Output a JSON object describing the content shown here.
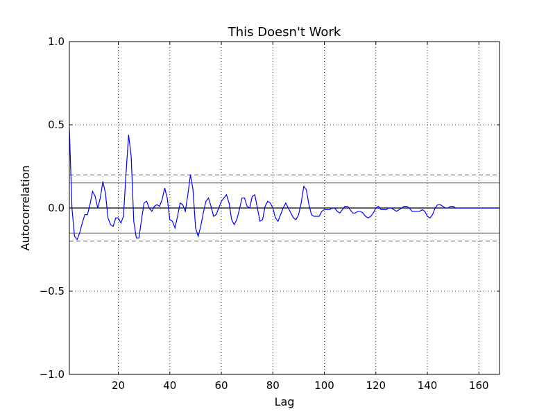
{
  "chart_data": {
    "type": "line",
    "title": "This Doesn't Work",
    "xlabel": "Lag",
    "ylabel": "Autocorrelation",
    "xlim": [
      1,
      168
    ],
    "ylim": [
      -1.0,
      1.0
    ],
    "x_ticks": [
      20,
      40,
      60,
      80,
      100,
      120,
      140,
      160
    ],
    "x_tick_labels": [
      "20",
      "40",
      "60",
      "80",
      "100",
      "120",
      "140",
      "160"
    ],
    "y_ticks": [
      -1.0,
      -0.5,
      0.0,
      0.5,
      1.0
    ],
    "y_tick_labels": [
      "−1.0",
      "−0.5",
      "0.0",
      "0.5",
      "1.0"
    ],
    "grid": true,
    "confidence_bands": {
      "solid": [
        0.151,
        -0.151
      ],
      "dashed": [
        0.199,
        -0.199
      ]
    },
    "colors": {
      "series": "#0000ff",
      "band_solid": "#808080",
      "band_dashed": "#808080",
      "zero_line": "#000000"
    },
    "series": [
      {
        "values": [
          0.48,
          0.0,
          -0.17,
          -0.19,
          -0.15,
          -0.09,
          -0.04,
          -0.04,
          0.02,
          0.1,
          0.07,
          0.0,
          0.06,
          0.16,
          0.09,
          -0.06,
          -0.1,
          -0.11,
          -0.06,
          -0.06,
          -0.09,
          -0.05,
          0.21,
          0.44,
          0.31,
          -0.08,
          -0.18,
          -0.18,
          -0.07,
          0.03,
          0.04,
          0.0,
          -0.02,
          0.01,
          0.02,
          0.01,
          0.05,
          0.12,
          0.06,
          -0.07,
          -0.08,
          -0.12,
          -0.05,
          0.03,
          0.02,
          -0.02,
          0.08,
          0.2,
          0.11,
          -0.12,
          -0.17,
          -0.11,
          -0.03,
          0.04,
          0.06,
          0.01,
          -0.05,
          -0.04,
          0.0,
          0.04,
          0.06,
          0.08,
          0.03,
          -0.07,
          -0.1,
          -0.07,
          -0.01,
          0.06,
          0.06,
          0.01,
          0.0,
          0.07,
          0.08,
          0.0,
          -0.08,
          -0.07,
          0.01,
          0.04,
          0.03,
          0.0,
          -0.06,
          -0.08,
          -0.04,
          0.0,
          0.03,
          0.0,
          -0.03,
          -0.06,
          -0.07,
          -0.04,
          0.03,
          0.13,
          0.11,
          0.02,
          -0.04,
          -0.05,
          -0.05,
          -0.05,
          -0.02,
          -0.01,
          -0.01,
          -0.01,
          0.0,
          0.0,
          -0.02,
          -0.03,
          -0.01,
          0.01,
          0.01,
          -0.01,
          -0.03,
          -0.03,
          -0.02,
          -0.02,
          -0.03,
          -0.05,
          -0.06,
          -0.05,
          -0.03,
          0.0,
          0.01,
          -0.01,
          -0.01,
          -0.01,
          0.0,
          0.0,
          -0.01,
          -0.02,
          -0.01,
          0.0,
          0.01,
          0.01,
          0.0,
          -0.02,
          -0.02,
          -0.02,
          -0.02,
          -0.01,
          -0.02,
          -0.05,
          -0.06,
          -0.04,
          0.0,
          0.02,
          0.02,
          0.01,
          0.0,
          0.0,
          0.01,
          0.01,
          0.0,
          0.0,
          0.0,
          0.0,
          0.0,
          0.0,
          0.0,
          0.0,
          0.0,
          0.0,
          0.0,
          0.0,
          0.0,
          0.0,
          0.0,
          0.0,
          0.0,
          0.0
        ]
      }
    ]
  }
}
